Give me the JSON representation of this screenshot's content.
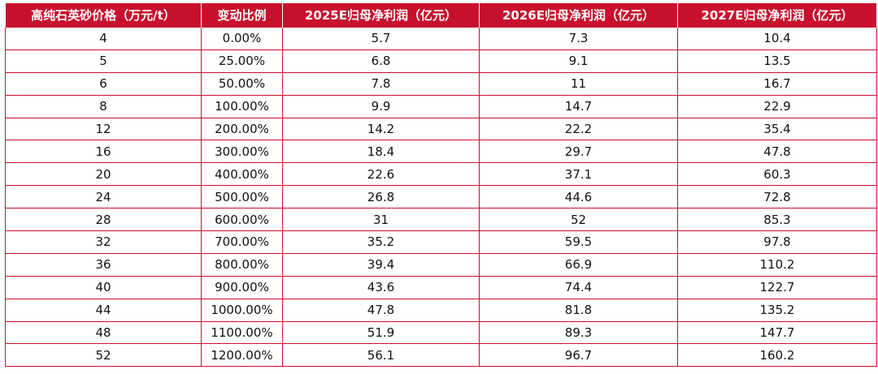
{
  "table": {
    "accent_color": "#c8102e",
    "headers": [
      "高纯石英砂价格（万元/t）",
      "变动比例",
      "2025E归母净利润（亿元）",
      "2026E归母净利润（亿元）",
      "2027E归母净利润（亿元）"
    ],
    "rows": [
      [
        "4",
        "0.00%",
        "5.7",
        "7.3",
        "10.4"
      ],
      [
        "5",
        "25.00%",
        "6.8",
        "9.1",
        "13.5"
      ],
      [
        "6",
        "50.00%",
        "7.8",
        "11",
        "16.7"
      ],
      [
        "8",
        "100.00%",
        "9.9",
        "14.7",
        "22.9"
      ],
      [
        "12",
        "200.00%",
        "14.2",
        "22.2",
        "35.4"
      ],
      [
        "16",
        "300.00%",
        "18.4",
        "29.7",
        "47.8"
      ],
      [
        "20",
        "400.00%",
        "22.6",
        "37.1",
        "60.3"
      ],
      [
        "24",
        "500.00%",
        "26.8",
        "44.6",
        "72.8"
      ],
      [
        "28",
        "600.00%",
        "31",
        "52",
        "85.3"
      ],
      [
        "32",
        "700.00%",
        "35.2",
        "59.5",
        "97.8"
      ],
      [
        "36",
        "800.00%",
        "39.4",
        "66.9",
        "110.2"
      ],
      [
        "40",
        "900.00%",
        "43.6",
        "74.4",
        "122.7"
      ],
      [
        "44",
        "1000.00%",
        "47.8",
        "81.8",
        "135.2"
      ],
      [
        "48",
        "1100.00%",
        "51.9",
        "89.3",
        "147.7"
      ],
      [
        "52",
        "1200.00%",
        "56.1",
        "96.7",
        "160.2"
      ]
    ]
  }
}
